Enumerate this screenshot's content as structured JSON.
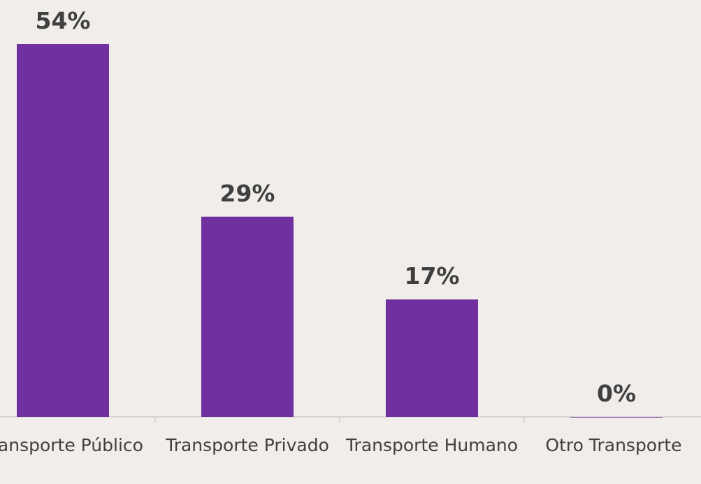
{
  "chart_data": {
    "type": "bar",
    "categories": [
      "Transporte Público",
      "Transporte Privado",
      "Transporte Humano",
      "Otro Transporte"
    ],
    "values": [
      54,
      29,
      17,
      0
    ],
    "value_labels": [
      "54%",
      "29%",
      "17%",
      "0%"
    ],
    "color": "#7030a0"
  }
}
